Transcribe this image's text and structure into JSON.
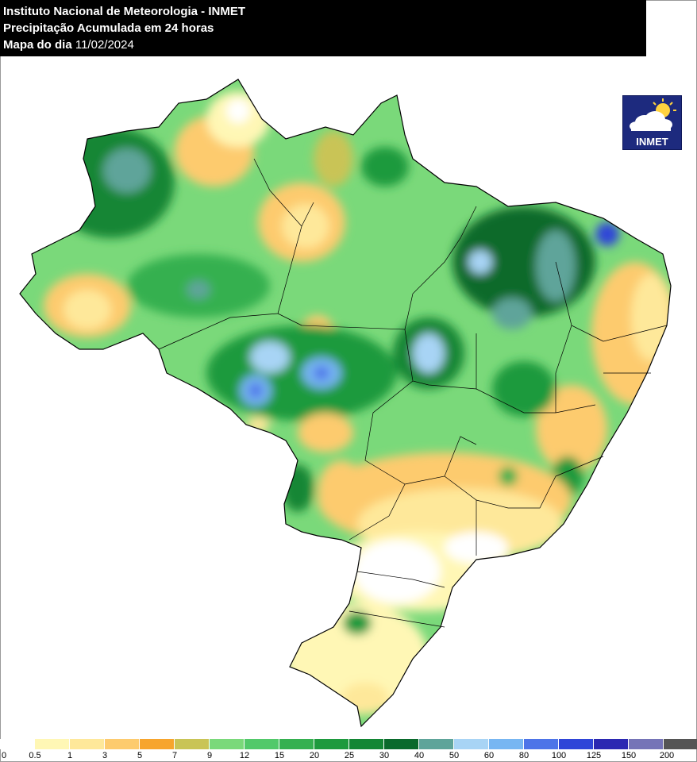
{
  "header": {
    "line1": "Instituto Nacional de Meteorologia - INMET",
    "line2": "Precipitação Acumulada em 24 horas",
    "line3_label": "Mapa do dia",
    "line3_date": "11/02/2024"
  },
  "logo": {
    "text": "INMET",
    "icon": "cloud-sun-icon"
  },
  "legend": {
    "ticks": [
      "0",
      "0.5",
      "1",
      "3",
      "5",
      "7",
      "9",
      "12",
      "15",
      "20",
      "25",
      "30",
      "40",
      "50",
      "60",
      "80",
      "100",
      "125",
      "150",
      "200"
    ],
    "colors": [
      "#ffffff",
      "#fff7b5",
      "#fee89a",
      "#fdcb6e",
      "#f7a52d",
      "#c9c456",
      "#7ad97a",
      "#52c96a",
      "#35b050",
      "#1e9a3e",
      "#138634",
      "#0a6a2c",
      "#5ea49a",
      "#a8d4f5",
      "#77b6f2",
      "#4d74e8",
      "#2f45d8",
      "#2b28b2",
      "#7574b7",
      "#555555"
    ]
  },
  "colors": {
    "title_bg": "#000000",
    "title_fg": "#ffffff",
    "map_outline": "#000000",
    "logo_bg": "#1d2a7e"
  }
}
